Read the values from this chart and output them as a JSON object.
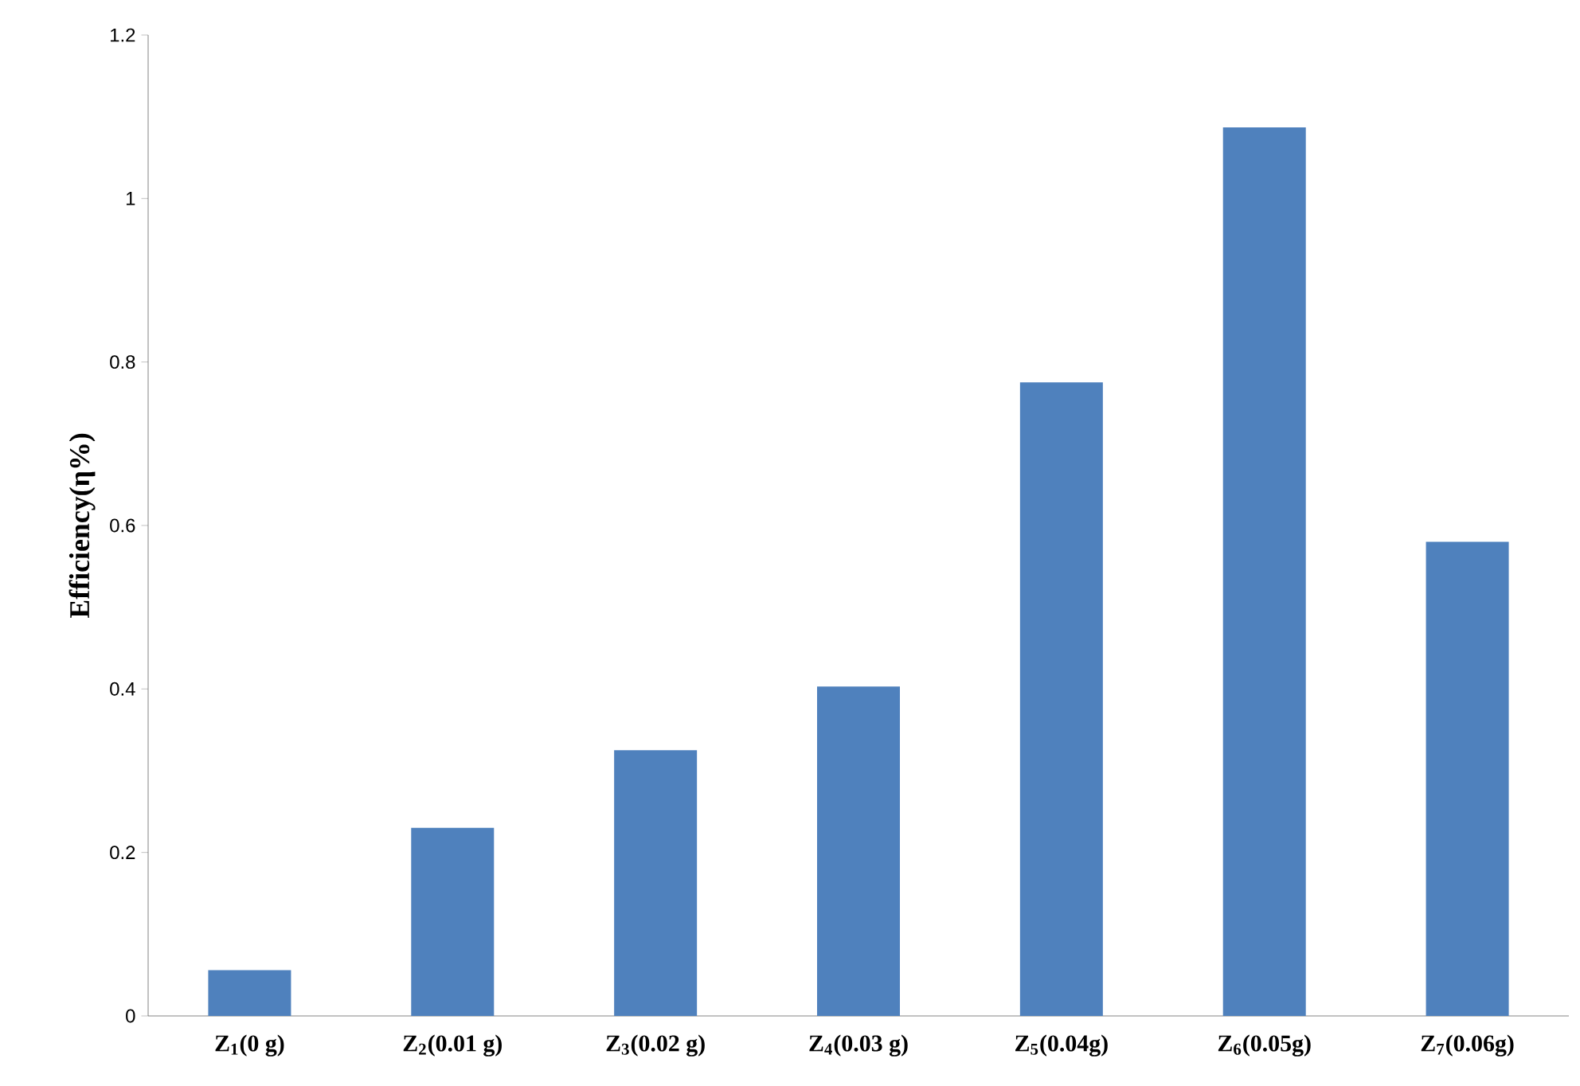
{
  "chart_data": {
    "type": "bar",
    "ylabel": "**Efficiency(η%)**",
    "categories": [
      "**Z$_{1}$(0 g)**",
      "**Z$_{2}$(0.01 g)**",
      "**Z$_{3}$(0.02 g)**",
      "**Z$_{4}$(0.03 g)**",
      "**Z$_{5}$(0.04g)**",
      "**Z$_{6}$(0.05g)**",
      "**Z$_{7}$(0.06g)**"
    ],
    "values": [
      0.056,
      0.23,
      0.325,
      0.403,
      0.775,
      1.087,
      0.58
    ],
    "color": "#4f81bd",
    "ylim": [
      0,
      1.2
    ],
    "yticks": [
      0,
      0.2,
      0.4,
      0.6,
      0.8,
      1,
      1.2
    ],
    "grid": false
  }
}
